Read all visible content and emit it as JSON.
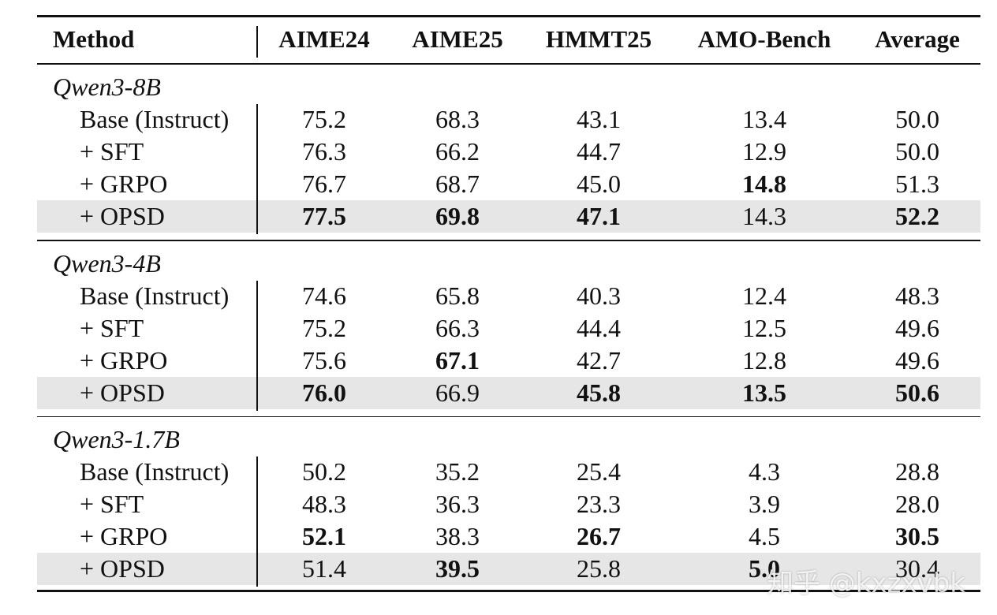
{
  "table": {
    "header": [
      "Method",
      "AIME24",
      "AIME25",
      "HMMT25",
      "AMO-Bench",
      "Average"
    ],
    "groups": [
      {
        "name": "Qwen3-8B",
        "rows": [
          {
            "method": "Base (Instruct)",
            "values": [
              "75.2",
              "68.3",
              "43.1",
              "13.4",
              "50.0"
            ],
            "bold": [],
            "highlight": false
          },
          {
            "method": "+ SFT",
            "values": [
              "76.3",
              "66.2",
              "44.7",
              "12.9",
              "50.0"
            ],
            "bold": [],
            "highlight": false
          },
          {
            "method": "+ GRPO",
            "values": [
              "76.7",
              "68.7",
              "45.0",
              "14.8",
              "51.3"
            ],
            "bold": [
              3
            ],
            "highlight": false
          },
          {
            "method": "+ OPSD",
            "values": [
              "77.5",
              "69.8",
              "47.1",
              "14.3",
              "52.2"
            ],
            "bold": [
              0,
              1,
              2,
              4
            ],
            "highlight": true
          }
        ]
      },
      {
        "name": "Qwen3-4B",
        "rows": [
          {
            "method": "Base (Instruct)",
            "values": [
              "74.6",
              "65.8",
              "40.3",
              "12.4",
              "48.3"
            ],
            "bold": [],
            "highlight": false
          },
          {
            "method": "+ SFT",
            "values": [
              "75.2",
              "66.3",
              "44.4",
              "12.5",
              "49.6"
            ],
            "bold": [],
            "highlight": false
          },
          {
            "method": "+ GRPO",
            "values": [
              "75.6",
              "67.1",
              "42.7",
              "12.8",
              "49.6"
            ],
            "bold": [
              1
            ],
            "highlight": false
          },
          {
            "method": "+ OPSD",
            "values": [
              "76.0",
              "66.9",
              "45.8",
              "13.5",
              "50.6"
            ],
            "bold": [
              0,
              2,
              3,
              4
            ],
            "highlight": true
          }
        ]
      },
      {
        "name": "Qwen3-1.7B",
        "rows": [
          {
            "method": "Base (Instruct)",
            "values": [
              "50.2",
              "35.2",
              "25.4",
              "4.3",
              "28.8"
            ],
            "bold": [],
            "highlight": false
          },
          {
            "method": "+ SFT",
            "values": [
              "48.3",
              "36.3",
              "23.3",
              "3.9",
              "28.0"
            ],
            "bold": [],
            "highlight": false
          },
          {
            "method": "+ GRPO",
            "values": [
              "52.1",
              "38.3",
              "26.7",
              "4.5",
              "30.5"
            ],
            "bold": [
              0,
              2,
              4
            ],
            "highlight": false
          },
          {
            "method": "+ OPSD",
            "values": [
              "51.4",
              "39.5",
              "25.8",
              "5.0",
              "30.4"
            ],
            "bold": [
              1,
              3
            ],
            "highlight": true
          }
        ]
      }
    ]
  },
  "watermark": "知乎 @kxzxvbk"
}
